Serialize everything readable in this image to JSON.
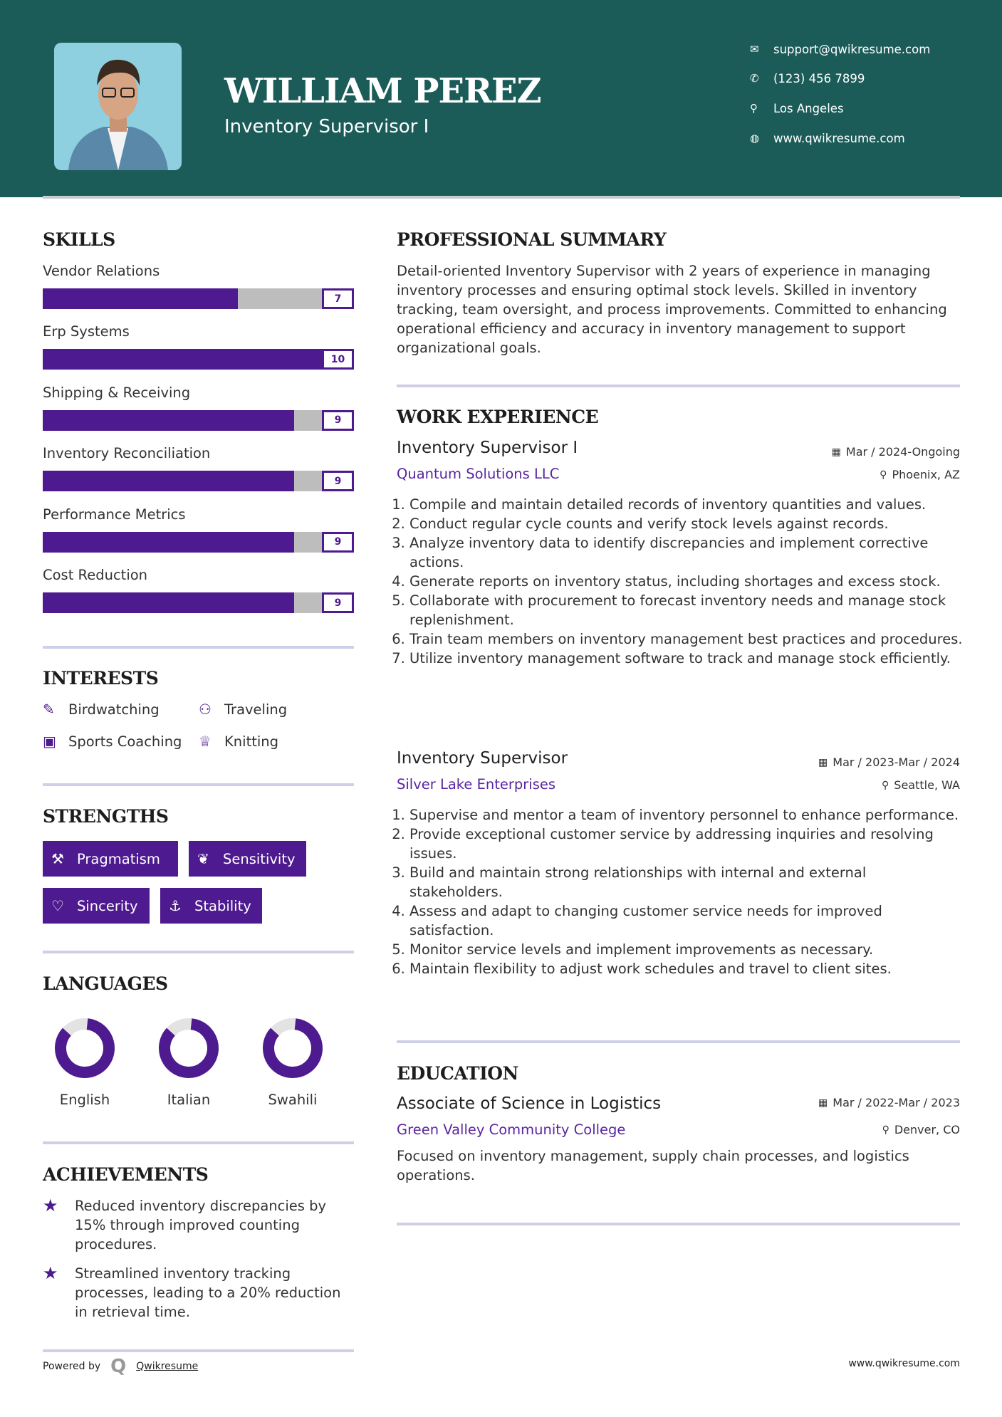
{
  "header": {
    "name": "WILLIAM PEREZ",
    "title": "Inventory Supervisor I",
    "contacts": [
      {
        "icon": "envelope-icon",
        "text": "support@qwikresume.com"
      },
      {
        "icon": "phone-icon",
        "text": "(123) 456 7899"
      },
      {
        "icon": "map-pin-icon",
        "text": "Los Angeles"
      },
      {
        "icon": "globe-icon",
        "text": "www.qwikresume.com"
      }
    ]
  },
  "colors": {
    "header": "#1b5c58",
    "accent": "#4e1a8f",
    "track": "#bdbdbd",
    "divider": "#cfcfe8"
  },
  "skills": {
    "heading": "SKILLS",
    "max": 10,
    "items": [
      {
        "label": "Vendor Relations",
        "value": 7
      },
      {
        "label": "Erp Systems",
        "value": 10
      },
      {
        "label": "Shipping & Receiving",
        "value": 9
      },
      {
        "label": "Inventory Reconciliation",
        "value": 9
      },
      {
        "label": "Performance Metrics",
        "value": 9
      },
      {
        "label": "Cost Reduction",
        "value": 9
      }
    ]
  },
  "interests": {
    "heading": "INTERESTS",
    "items": [
      {
        "icon": "edit-icon",
        "label": "Birdwatching"
      },
      {
        "icon": "binoculars-icon",
        "label": "Traveling"
      },
      {
        "icon": "briefcase-icon",
        "label": "Sports Coaching"
      },
      {
        "icon": "trophy-icon",
        "label": "Knitting"
      }
    ]
  },
  "strengths": {
    "heading": "STRENGTHS",
    "items": [
      {
        "icon": "gavel-icon",
        "label": "Pragmatism"
      },
      {
        "icon": "leaf-icon",
        "label": "Sensitivity"
      },
      {
        "icon": "heart-icon",
        "label": "Sincerity"
      },
      {
        "icon": "anchor-icon",
        "label": "Stability"
      }
    ]
  },
  "languages": {
    "heading": "LANGUAGES",
    "items": [
      {
        "label": "English",
        "level": 0.85
      },
      {
        "label": "Italian",
        "level": 0.85
      },
      {
        "label": "Swahili",
        "level": 0.85
      }
    ]
  },
  "achievements": {
    "heading": "ACHIEVEMENTS",
    "items": [
      "Reduced inventory discrepancies by 15% through improved counting procedures.",
      "Streamlined inventory tracking processes, leading to a 20% reduction in retrieval time."
    ]
  },
  "summary": {
    "heading": "PROFESSIONAL SUMMARY",
    "text": "Detail-oriented Inventory Supervisor with 2 years of experience in managing inventory processes and ensuring optimal stock levels. Skilled in inventory tracking, team oversight, and process improvements. Committed to enhancing operational efficiency and accuracy in inventory management to support organizational goals."
  },
  "experience": {
    "heading": "WORK EXPERIENCE",
    "jobs": [
      {
        "title": "Inventory Supervisor I",
        "company": "Quantum Solutions LLC",
        "dates": "Mar / 2024-Ongoing",
        "location": "Phoenix, AZ",
        "duties": [
          "Compile and maintain detailed records of inventory quantities and values.",
          "Conduct regular cycle counts and verify stock levels against records.",
          "Analyze inventory data to identify discrepancies and implement corrective actions.",
          "Generate reports on inventory status, including shortages and excess stock.",
          "Collaborate with procurement to forecast inventory needs and manage stock replenishment.",
          "Train team members on inventory management best practices and procedures.",
          "Utilize inventory management software to track and manage stock efficiently."
        ]
      },
      {
        "title": "Inventory Supervisor",
        "company": "Silver Lake Enterprises",
        "dates": "Mar / 2023-Mar / 2024",
        "location": "Seattle, WA",
        "duties": [
          "Supervise and mentor a team of inventory personnel to enhance performance.",
          "Provide exceptional customer service by addressing inquiries and resolving issues.",
          "Build and maintain strong relationships with internal and external stakeholders.",
          "Assess and adapt to changing customer service needs for improved satisfaction.",
          "Monitor service levels and implement improvements as necessary.",
          "Maintain flexibility to adjust work schedules and travel to client sites."
        ]
      }
    ]
  },
  "education": {
    "heading": "EDUCATION",
    "degree": "Associate of Science in Logistics",
    "school": "Green Valley Community College",
    "dates": "Mar / 2022-Mar / 2023",
    "location": "Denver, CO",
    "text": "Focused on inventory management, supply chain processes, and logistics operations."
  },
  "footer": {
    "powered_by": "Powered by",
    "brand": "Qwikresume",
    "url": "www.qwikresume.com"
  }
}
